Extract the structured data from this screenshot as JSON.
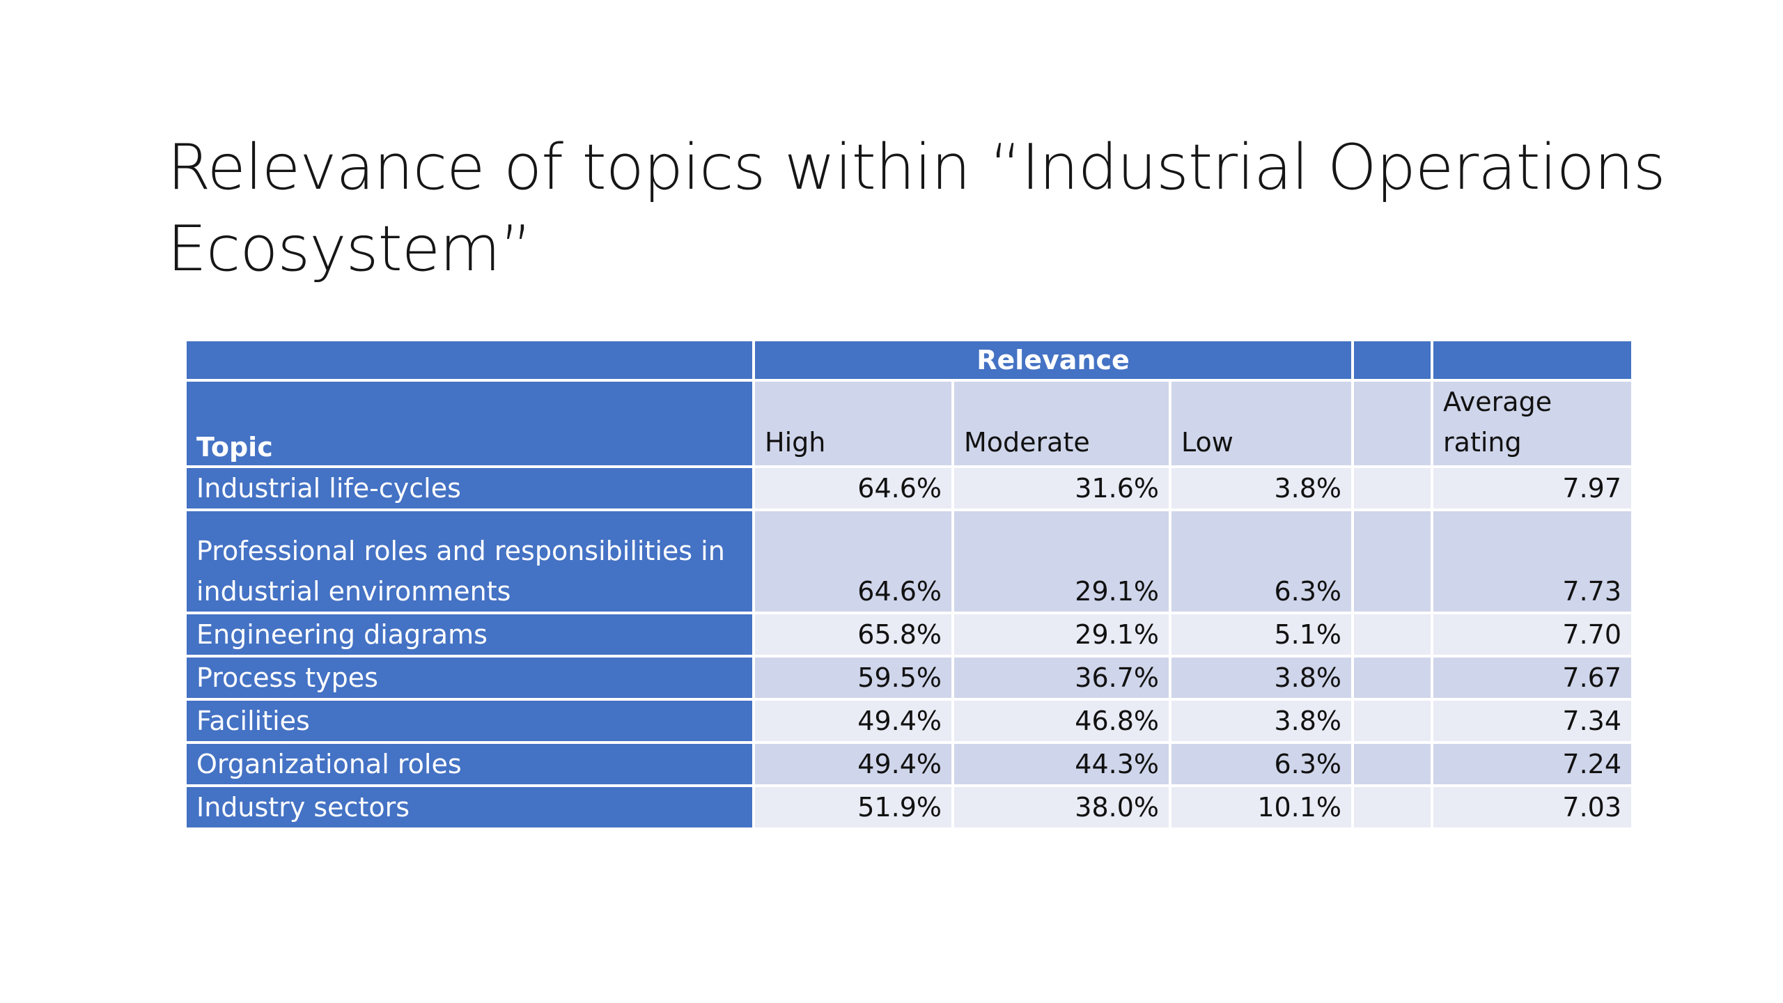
{
  "slide": {
    "title": "Relevance of topics within “Industrial Operations Ecosystem”"
  },
  "table": {
    "group_header": "Relevance",
    "columns": {
      "topic": "Topic",
      "high": "High",
      "moderate": "Moderate",
      "low": "Low",
      "blank": "",
      "average": "Average rating"
    },
    "rows": [
      {
        "topic": "Industrial life-cycles",
        "high": "64.6%",
        "moderate": "31.6%",
        "low": "3.8%",
        "blank": "",
        "average": "7.97"
      },
      {
        "topic": "Professional roles and responsibilities in industrial environments",
        "high": "64.6%",
        "moderate": "29.1%",
        "low": "6.3%",
        "blank": "",
        "average": "7.73"
      },
      {
        "topic": "Engineering diagrams",
        "high": "65.8%",
        "moderate": "29.1%",
        "low": "5.1%",
        "blank": "",
        "average": "7.70"
      },
      {
        "topic": "Process types",
        "high": "59.5%",
        "moderate": "36.7%",
        "low": "3.8%",
        "blank": "",
        "average": "7.67"
      },
      {
        "topic": "Facilities",
        "high": "49.4%",
        "moderate": "46.8%",
        "low": "3.8%",
        "blank": "",
        "average": "7.34"
      },
      {
        "topic": "Organizational roles",
        "high": "49.4%",
        "moderate": "44.3%",
        "low": "6.3%",
        "blank": "",
        "average": "7.24"
      },
      {
        "topic": "Industry sectors",
        "high": "51.9%",
        "moderate": "38.0%",
        "low": "10.1%",
        "blank": "",
        "average": "7.03"
      }
    ]
  },
  "colors": {
    "header_blue": "#4472c4",
    "band_dark": "#cfd5ea",
    "band_light": "#e9ebf5"
  }
}
